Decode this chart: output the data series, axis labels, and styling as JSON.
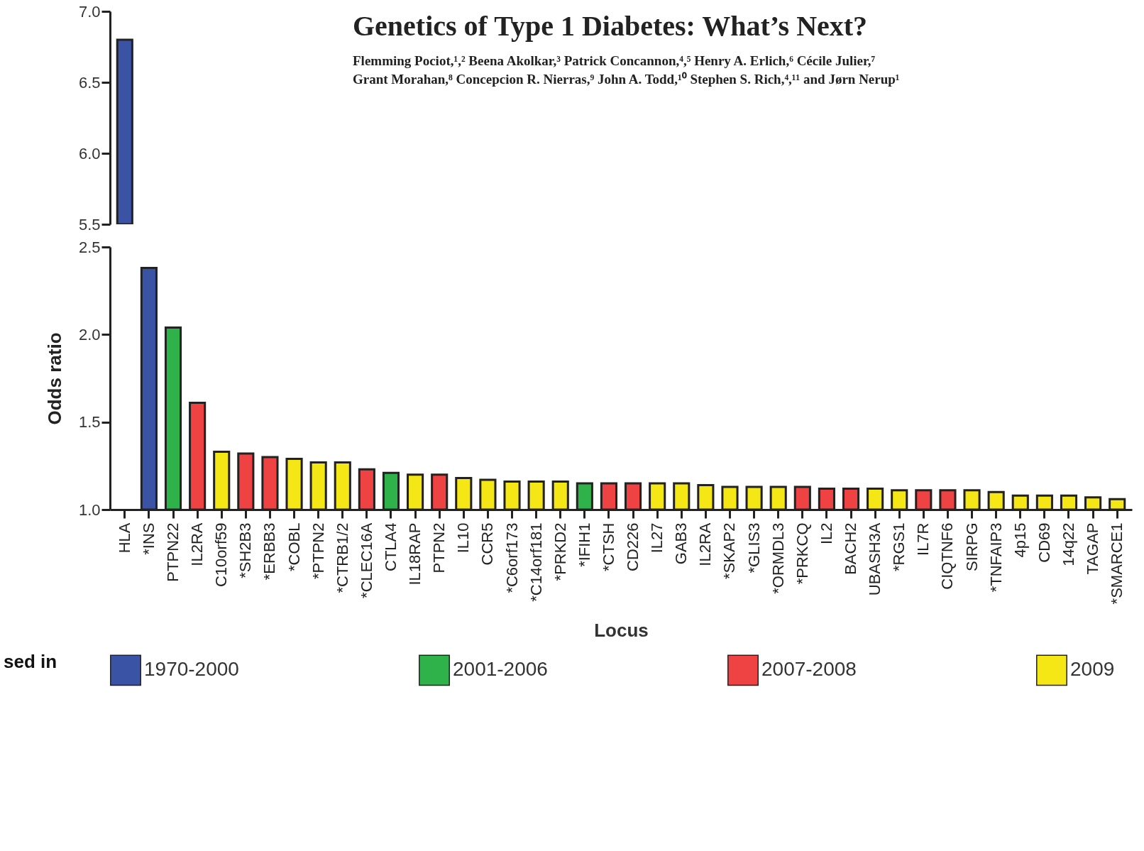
{
  "chart_data": [
    {
      "type": "bar",
      "categories": [
        null
      ],
      "series": [
        {
          "color": "#3a53a4",
          "values": [
            6.8
          ]
        }
      ],
      "ylim": [
        5.5,
        7.0
      ],
      "yticks": [
        {
          "value": 5.5,
          "label": "5.5"
        },
        {
          "value": 6.0,
          "label": "6.0"
        },
        {
          "value": 6.5,
          "label": "6.5"
        },
        {
          "value": 7.0,
          "label": "7.0"
        }
      ],
      "tick_labels": "y"
    },
    {
      "type": "other",
      "title": "Genetics of Type 1 Diabetes: What’s Next?",
      "subtitle": [
        "Flemming Pociot,¹,² Beena Akolkar,³ Patrick Concannon,⁴,⁵ Henry A. Erlich,⁶ Cécile Julier,⁷",
        "Grant Morahan,⁸ Concepcion R. Nierras,⁹ John A. Todd,¹⁰ Stephen S. Rich,⁴,¹¹ and Jørn Nerup¹"
      ]
    },
    {
      "type": "bar",
      "xlabel": "Locus",
      "ylabel": "Odds ratio",
      "annotations": [
        "sed in"
      ],
      "categories": [
        "HLA",
        "*INS",
        "PTPN22",
        "IL2RA",
        "C10orf59",
        "*SH2B3",
        "*ERBB3",
        "*COBL",
        "*PTPN2",
        "*CTRB1/2",
        "*CLEC16A",
        "CTLA4",
        "IL18RAP",
        "PTPN2",
        "IL10",
        "CCR5",
        "*C6orf173",
        "*C14orf181",
        "*PRKD2",
        "*IFIH1",
        "*CTSH",
        "CD226",
        "IL27",
        "GAB3",
        "IL2RA",
        "*SKAP2",
        "*GLIS3",
        "*ORMDL3",
        "*PRKCQ",
        "IL2",
        "BACH2",
        "UBASH3A",
        "*RGS1",
        "IL7R",
        "CIQTNF6",
        "SIRPG",
        "*TNFAIP3",
        "4p15",
        "CD69",
        "14q22",
        "TAGAP",
        "*SMARCE1"
      ],
      "series": [
        {
          "name": "1970-2000",
          "color": "#3a53a4",
          "values": [
            null,
            2.38,
            null,
            null,
            null,
            null,
            null,
            null,
            null,
            null,
            null,
            null,
            null,
            null,
            null,
            null,
            null,
            null,
            null,
            null,
            null,
            null,
            null,
            null,
            null,
            null,
            null,
            null,
            null,
            null,
            null,
            null,
            null,
            null,
            null,
            null,
            null,
            null,
            null,
            null,
            null,
            null
          ]
        },
        {
          "name": "2001-2006",
          "color": "#2fb24a",
          "values": [
            null,
            null,
            2.04,
            null,
            null,
            null,
            null,
            null,
            null,
            null,
            null,
            1.21,
            null,
            null,
            null,
            null,
            null,
            null,
            null,
            1.15,
            null,
            null,
            null,
            null,
            null,
            null,
            null,
            null,
            null,
            null,
            null,
            null,
            null,
            null,
            null,
            null,
            null,
            null,
            null,
            null,
            null,
            null
          ]
        },
        {
          "name": "2007-2008",
          "color": "#ee4342",
          "values": [
            null,
            null,
            null,
            1.61,
            null,
            1.32,
            1.3,
            null,
            null,
            null,
            1.23,
            null,
            null,
            1.2,
            null,
            null,
            null,
            null,
            null,
            null,
            1.15,
            1.15,
            null,
            null,
            null,
            null,
            null,
            null,
            1.13,
            1.12,
            1.12,
            null,
            null,
            1.11,
            1.11,
            null,
            null,
            null,
            null,
            null,
            null,
            null
          ]
        },
        {
          "name": "2009",
          "color": "#f5e616",
          "values": [
            null,
            null,
            null,
            null,
            1.33,
            null,
            null,
            1.29,
            1.27,
            1.27,
            null,
            null,
            1.2,
            null,
            1.18,
            1.17,
            1.16,
            1.16,
            1.16,
            null,
            null,
            null,
            1.15,
            1.15,
            1.14,
            1.13,
            1.13,
            1.13,
            null,
            null,
            null,
            1.12,
            1.11,
            null,
            null,
            1.11,
            1.1,
            1.08,
            1.08,
            1.08,
            1.07,
            1.06
          ]
        }
      ],
      "ylim": [
        1.0,
        2.5
      ],
      "yticks": [
        {
          "value": 1.0,
          "label": "1.0"
        },
        {
          "value": 1.5,
          "label": "1.5"
        },
        {
          "value": 2.0,
          "label": "2.0"
        },
        {
          "value": 2.5,
          "label": "2.5"
        }
      ],
      "legend": "bottom"
    }
  ]
}
